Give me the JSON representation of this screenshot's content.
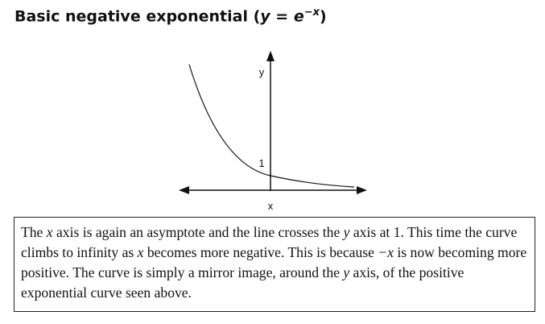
{
  "heading": {
    "parts": [
      "Basic negative exponential (",
      "y",
      " = ",
      "e",
      "−x",
      ")"
    ]
  },
  "diagram": {
    "y_axis_label": "y",
    "x_axis_label": "x",
    "intercept_label": "1"
  },
  "paragraph": {
    "parts": [
      "The ",
      "x",
      " axis is again an asymptote and the line crosses the ",
      "y",
      " axis at 1. This time the curve climbs to infinity as ",
      "x",
      " becomes more negative. This is because ",
      "−x",
      " is now becoming more positive. The curve is simply a mirror image, around the ",
      "y",
      " axis, of the positive exponential curve seen above."
    ]
  }
}
